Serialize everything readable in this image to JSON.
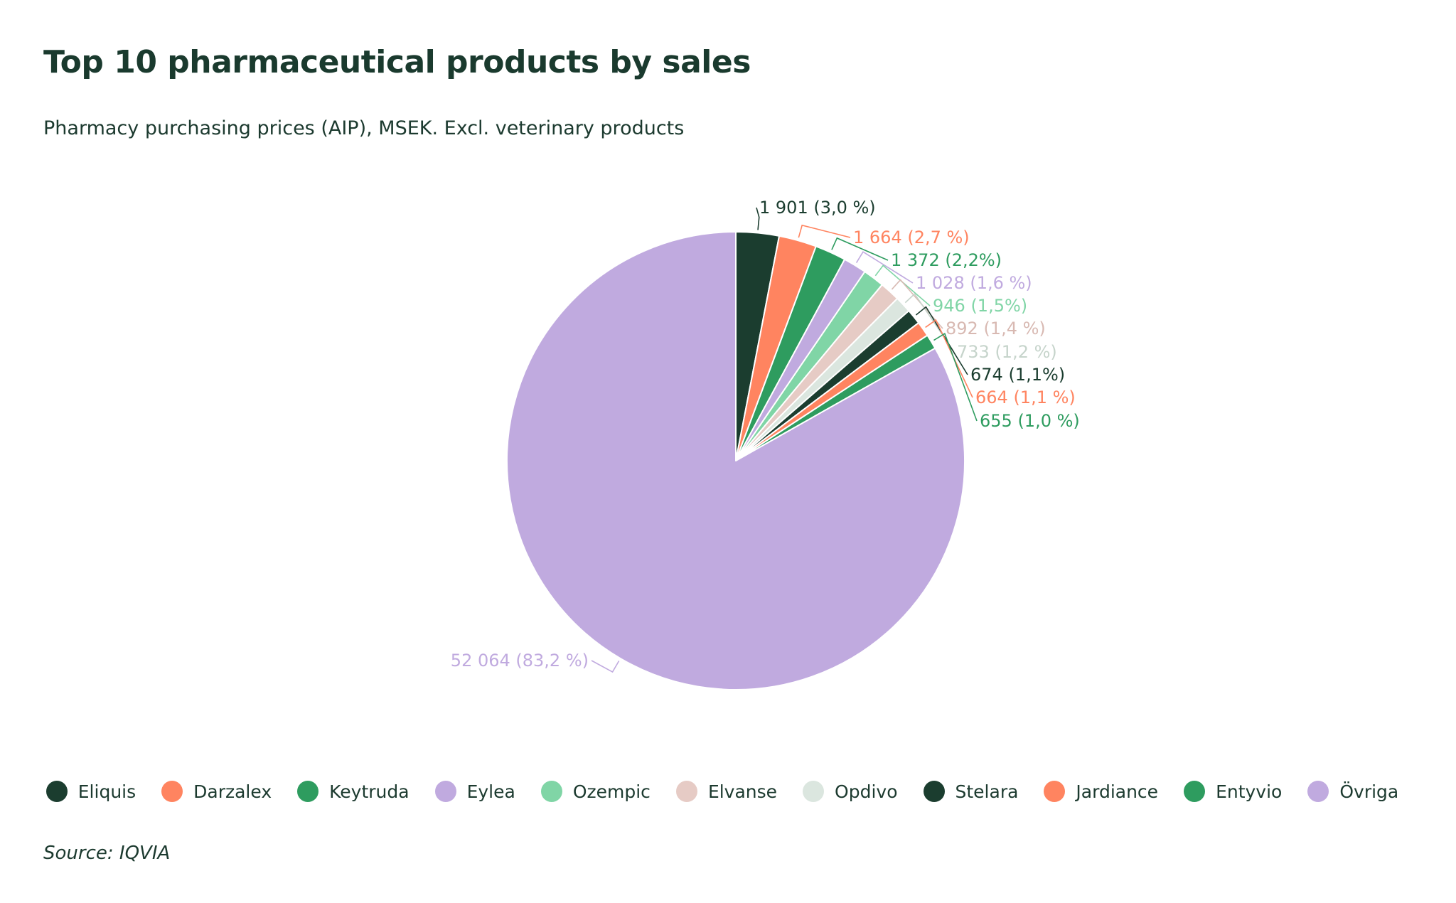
{
  "title": "Top 10 pharmaceutical products by sales",
  "subtitle": "Pharmacy purchasing prices (AIP), MSEK. Excl. veterinary products",
  "source": "Source: IQVIA",
  "chart_data": {
    "type": "pie",
    "title": "Top 10 pharmaceutical products by sales",
    "subtitle": "Pharmacy purchasing prices (AIP), MSEK. Excl. veterinary products",
    "legend_position": "bottom",
    "start_angle": "top",
    "direction": "clockwise",
    "slices": [
      {
        "name": "Eliquis",
        "value": 1901,
        "label": "1 901 (3,0 %)",
        "color": "#1b3d2f"
      },
      {
        "name": "Darzalex",
        "value": 1664,
        "label": "1 664 (2,7 %)",
        "color": "#ff8460"
      },
      {
        "name": "Keytruda",
        "value": 1372,
        "label": "1 372 (2,2%)",
        "color": "#2e9c5f"
      },
      {
        "name": "Eylea",
        "value": 1028,
        "label": "1 028 (1,6 %)",
        "color": "#c0aadf"
      },
      {
        "name": "Ozempic",
        "value": 946,
        "label": "946 (1,5%)",
        "color": "#80d5a6"
      },
      {
        "name": "Elvanse",
        "value": 892,
        "label": "892 (1,4 %)",
        "color": "#e6cbc5"
      },
      {
        "name": "Opdivo",
        "value": 733,
        "label": "733 (1,2 %)",
        "color": "#dbe6df"
      },
      {
        "name": "Stelara",
        "value": 674,
        "label": "674 (1,1%)",
        "color": "#1b3d2f"
      },
      {
        "name": "Jardiance",
        "value": 664,
        "label": "664 (1,1 %)",
        "color": "#ff8460"
      },
      {
        "name": "Entyvio",
        "value": 655,
        "label": "655 (1,0 %)",
        "color": "#2e9c5f"
      },
      {
        "name": "Övriga",
        "value": 52064,
        "label": "52 064 (83,2 %)",
        "color": "#c0aadf"
      }
    ]
  }
}
